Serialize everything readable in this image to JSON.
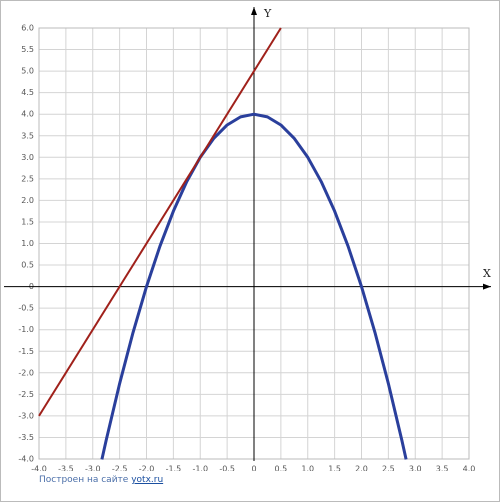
{
  "chart_data": {
    "type": "line",
    "x_label": "X",
    "y_label": "Y",
    "xlim": [
      -4,
      4
    ],
    "ylim": [
      -4,
      6
    ],
    "grid": true,
    "xticks": [
      {
        "value": -4,
        "label": "-4.0"
      },
      -3.5,
      {
        "value": -3,
        "label": "-3.0"
      },
      -2.5,
      {
        "value": -2,
        "label": "-2.0"
      },
      -1.5,
      {
        "value": -1,
        "label": "-1.0"
      },
      -0.5,
      0,
      0.5,
      {
        "value": 1,
        "label": "1.0"
      },
      1.5,
      {
        "value": 2,
        "label": "2.0"
      },
      2.5,
      {
        "value": 3,
        "label": "3.0"
      },
      3.5,
      {
        "value": 4,
        "label": "4.0"
      }
    ],
    "yticks": [
      {
        "value": -4,
        "label": "-4.0"
      },
      -3.5,
      {
        "value": -3,
        "label": "-3.0"
      },
      -2.5,
      {
        "value": -2,
        "label": "-2.0"
      },
      -1.5,
      {
        "value": -1,
        "label": "-1.0"
      },
      -0.5,
      0,
      0.5,
      {
        "value": 1,
        "label": "1.0"
      },
      1.5,
      {
        "value": 2,
        "label": "2.0"
      },
      2.5,
      {
        "value": 3,
        "label": "3.0"
      },
      3.5,
      {
        "value": 4,
        "label": "4.0"
      },
      4.5,
      {
        "value": 5,
        "label": "5.0"
      },
      5.5,
      {
        "value": 6,
        "label": "6.0"
      }
    ],
    "series": [
      {
        "color": "#2a3f9c",
        "x": [
          -2.83,
          -2.75,
          -2.5,
          -2.25,
          -2,
          -1.75,
          -1.5,
          -1.25,
          -1,
          -0.75,
          -0.5,
          -0.25,
          0,
          0.25,
          0.5,
          0.75,
          1,
          1.25,
          1.5,
          1.75,
          2,
          2.25,
          2.5,
          2.75,
          2.83
        ],
        "values": [
          -4.01,
          -3.5625,
          -2.25,
          -1.0625,
          0,
          0.9375,
          1.75,
          2.4375,
          3,
          3.4375,
          3.75,
          3.9375,
          4,
          3.9375,
          3.75,
          3.4375,
          3,
          2.4375,
          1.75,
          0.9375,
          0,
          -1.0625,
          -2.25,
          -3.5625,
          -4.01
        ]
      },
      {
        "color": "#a0211b",
        "x": [
          -4,
          0.5
        ],
        "values": [
          -3,
          6
        ]
      }
    ],
    "footer": {
      "text": "Построен на сайте",
      "link": "yotx.ru"
    }
  }
}
